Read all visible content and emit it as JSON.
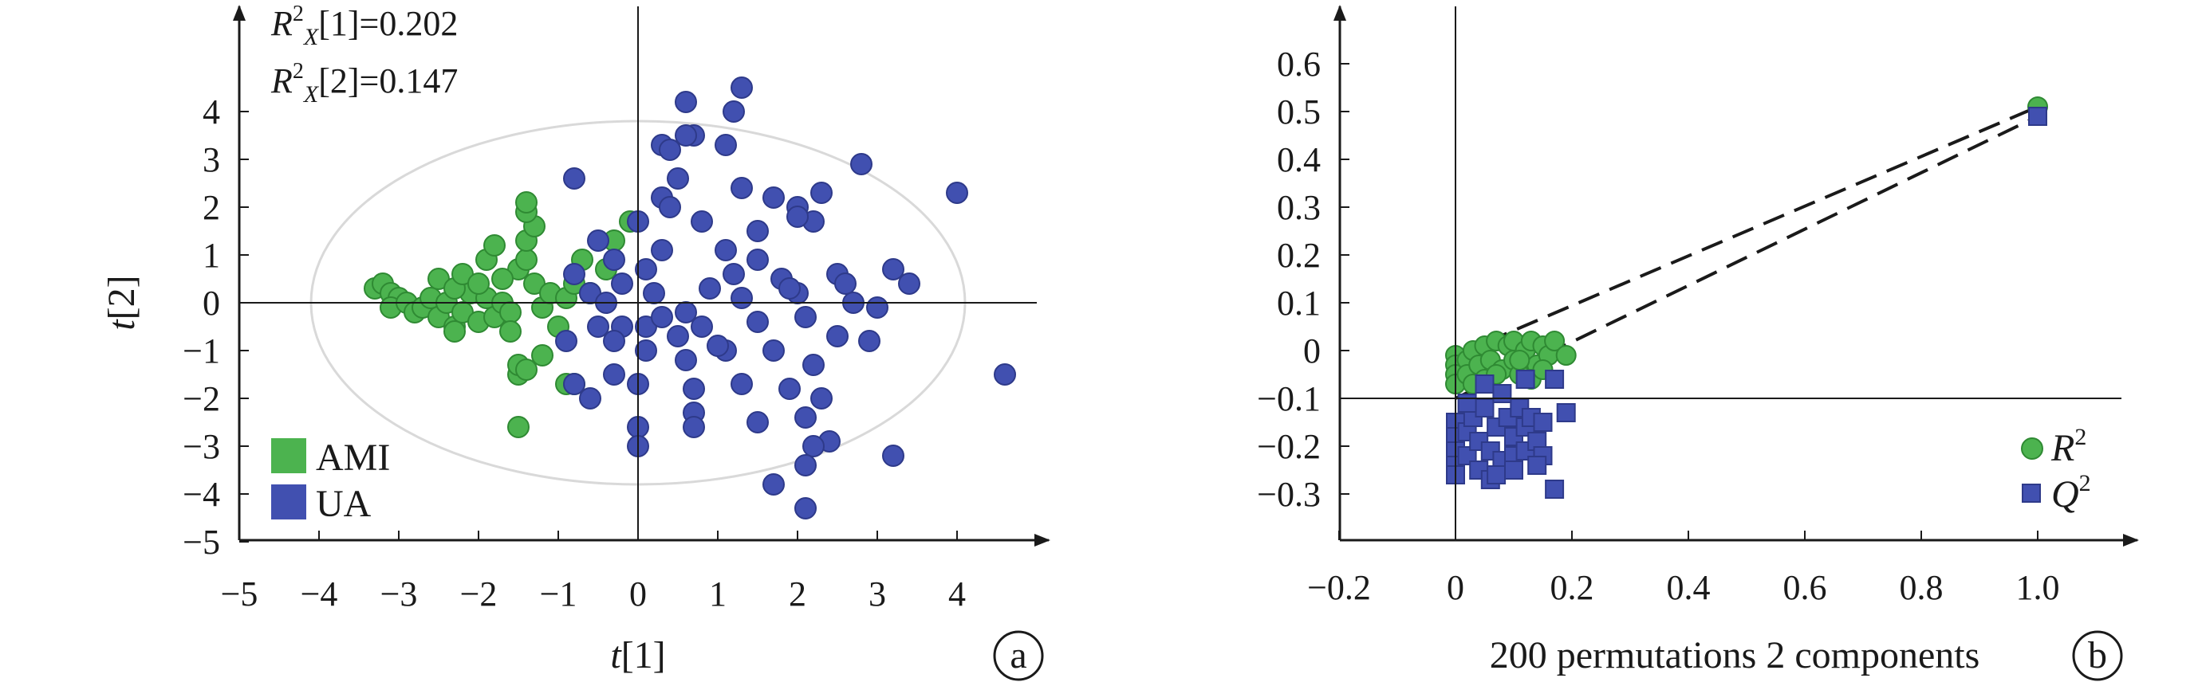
{
  "colors": {
    "ami": "#4CB34F",
    "ua": "#4150B0",
    "outline": "#2E3A8A",
    "outline_green": "#2F8A33",
    "ellipse": "#D9D9D9",
    "axis": "#1a1a1a"
  },
  "chart_data": [
    {
      "type": "scatter",
      "panel_label": "a",
      "xlabel": "t[1]",
      "ylabel": "t[2]",
      "xlim": [
        -5,
        5
      ],
      "ylim": [
        -5,
        5
      ],
      "xticks": [
        "−5",
        "−4",
        "−3",
        "−2",
        "−1",
        "0",
        "1",
        "2",
        "3",
        "4"
      ],
      "yticks": [
        "4",
        "3",
        "2",
        "1",
        "0",
        "−1",
        "−2",
        "−3",
        "−4",
        "−5"
      ],
      "annotations": [
        "R²X[1]=0.202",
        "R²X[2]=0.147"
      ],
      "legend": {
        "placement": "bottom-left",
        "entries": [
          "AMI",
          "UA"
        ]
      },
      "ellipse": {
        "rx": 4.1,
        "ry": 3.8
      },
      "series": [
        {
          "name": "AMI",
          "points": [
            [
              -3.3,
              0.3
            ],
            [
              -3.2,
              0.4
            ],
            [
              -3.1,
              0.2
            ],
            [
              -3.0,
              0.1
            ],
            [
              -3.1,
              -0.1
            ],
            [
              -2.9,
              0.0
            ],
            [
              -2.8,
              -0.2
            ],
            [
              -2.7,
              -0.1
            ],
            [
              -2.6,
              0.1
            ],
            [
              -2.5,
              -0.3
            ],
            [
              -2.4,
              0.0
            ],
            [
              -2.3,
              -0.5
            ],
            [
              -2.3,
              -0.6
            ],
            [
              -2.2,
              -0.2
            ],
            [
              -2.1,
              0.2
            ],
            [
              -2.0,
              -0.4
            ],
            [
              -2.5,
              0.5
            ],
            [
              -2.3,
              0.3
            ],
            [
              -2.2,
              0.6
            ],
            [
              -1.9,
              0.1
            ],
            [
              -1.8,
              -0.3
            ],
            [
              -1.7,
              0.0
            ],
            [
              -1.6,
              -0.2
            ],
            [
              -1.5,
              0.7
            ],
            [
              -1.4,
              0.9
            ],
            [
              -1.4,
              1.3
            ],
            [
              -1.3,
              1.6
            ],
            [
              -1.3,
              0.4
            ],
            [
              -1.2,
              -0.1
            ],
            [
              -1.1,
              0.2
            ],
            [
              -1.0,
              -0.5
            ],
            [
              -0.9,
              0.1
            ],
            [
              -0.8,
              0.4
            ],
            [
              -0.7,
              0.9
            ],
            [
              -1.9,
              0.9
            ],
            [
              -1.8,
              1.2
            ],
            [
              -1.6,
              -0.6
            ],
            [
              -1.5,
              -1.5
            ],
            [
              -1.5,
              -1.3
            ],
            [
              -1.4,
              -1.4
            ],
            [
              -1.2,
              -1.1
            ],
            [
              -0.9,
              -1.7
            ],
            [
              -0.8,
              -1.7
            ],
            [
              -1.5,
              -2.6
            ],
            [
              -0.3,
              1.3
            ],
            [
              -0.1,
              1.7
            ],
            [
              -0.6,
              0.2
            ],
            [
              -0.4,
              0.7
            ],
            [
              -1.4,
              1.9
            ],
            [
              -1.4,
              2.1
            ],
            [
              -2.0,
              0.4
            ],
            [
              -1.7,
              0.5
            ]
          ]
        },
        {
          "name": "UA",
          "points": [
            [
              1.3,
              4.5
            ],
            [
              1.2,
              4.0
            ],
            [
              0.6,
              4.2
            ],
            [
              0.7,
              3.5
            ],
            [
              0.3,
              3.3
            ],
            [
              0.4,
              3.2
            ],
            [
              1.1,
              3.3
            ],
            [
              0.6,
              3.5
            ],
            [
              -0.8,
              2.6
            ],
            [
              0.5,
              2.6
            ],
            [
              0.3,
              2.2
            ],
            [
              1.3,
              2.4
            ],
            [
              1.7,
              2.2
            ],
            [
              2.0,
              2.0
            ],
            [
              2.3,
              2.3
            ],
            [
              2.8,
              2.9
            ],
            [
              4.0,
              2.3
            ],
            [
              0.4,
              2.0
            ],
            [
              0.8,
              1.7
            ],
            [
              1.5,
              1.5
            ],
            [
              2.2,
              1.7
            ],
            [
              2.0,
              1.8
            ],
            [
              0.0,
              1.7
            ],
            [
              -0.5,
              1.3
            ],
            [
              -0.3,
              0.9
            ],
            [
              0.1,
              0.7
            ],
            [
              0.3,
              1.1
            ],
            [
              1.1,
              1.1
            ],
            [
              1.5,
              0.9
            ],
            [
              1.8,
              0.5
            ],
            [
              2.5,
              0.6
            ],
            [
              3.2,
              0.7
            ],
            [
              3.4,
              0.4
            ],
            [
              -0.8,
              0.6
            ],
            [
              -0.6,
              0.2
            ],
            [
              -0.4,
              0.0
            ],
            [
              0.2,
              0.2
            ],
            [
              0.9,
              0.3
            ],
            [
              1.3,
              0.1
            ],
            [
              2.0,
              0.2
            ],
            [
              2.7,
              0.0
            ],
            [
              3.0,
              -0.1
            ],
            [
              -0.5,
              -0.5
            ],
            [
              -0.2,
              -0.5
            ],
            [
              0.1,
              -0.5
            ],
            [
              0.5,
              -0.7
            ],
            [
              0.8,
              -0.5
            ],
            [
              1.5,
              -0.4
            ],
            [
              2.1,
              -0.3
            ],
            [
              2.5,
              -0.7
            ],
            [
              2.9,
              -0.8
            ],
            [
              -0.9,
              -0.8
            ],
            [
              -0.3,
              -0.8
            ],
            [
              0.1,
              -1.0
            ],
            [
              0.6,
              -1.2
            ],
            [
              1.1,
              -1.0
            ],
            [
              1.7,
              -1.0
            ],
            [
              2.2,
              -1.3
            ],
            [
              -0.8,
              -1.7
            ],
            [
              -0.3,
              -1.5
            ],
            [
              0.0,
              -1.7
            ],
            [
              0.7,
              -1.8
            ],
            [
              1.3,
              -1.7
            ],
            [
              1.9,
              -1.8
            ],
            [
              2.3,
              -2.0
            ],
            [
              -0.6,
              -2.0
            ],
            [
              0.0,
              -2.6
            ],
            [
              0.7,
              -2.3
            ],
            [
              1.5,
              -2.5
            ],
            [
              2.1,
              -2.4
            ],
            [
              2.4,
              -2.9
            ],
            [
              0.0,
              -3.0
            ],
            [
              0.7,
              -2.6
            ],
            [
              2.2,
              -3.0
            ],
            [
              2.1,
              -3.4
            ],
            [
              1.7,
              -3.8
            ],
            [
              2.1,
              -4.3
            ],
            [
              3.2,
              -3.2
            ],
            [
              4.6,
              -1.5
            ],
            [
              0.6,
              -0.2
            ],
            [
              1.2,
              0.6
            ],
            [
              -0.2,
              0.4
            ],
            [
              0.3,
              -0.3
            ],
            [
              1.0,
              -0.9
            ],
            [
              1.9,
              0.3
            ],
            [
              2.6,
              0.4
            ]
          ]
        }
      ]
    },
    {
      "type": "scatter",
      "panel_label": "b",
      "xlabel": "200 permutations 2 components",
      "ylabel": "",
      "xlim": [
        -0.25,
        1.2
      ],
      "ylim": [
        -0.4,
        0.7
      ],
      "xticks": [
        "−0.2",
        "0",
        "0.2",
        "0.4",
        "0.6",
        "0.8",
        "1.0"
      ],
      "yticks": [
        "0.6",
        "0.5",
        "0.4",
        "0.3",
        "0.2",
        "0.1",
        "0",
        "−0.1",
        "−0.2",
        "−0.3"
      ],
      "legend": {
        "placement": "bottom-right",
        "entries": [
          "R²",
          "Q²"
        ]
      },
      "regression_lines": [
        {
          "series": "R2",
          "from": [
            0.0,
            -0.01
          ],
          "to": [
            1.0,
            0.51
          ]
        },
        {
          "series": "Q2",
          "from": [
            0.0,
            -0.1
          ],
          "to": [
            1.0,
            0.49
          ]
        }
      ],
      "series": [
        {
          "name": "R2",
          "points": [
            [
              1.0,
              0.51
            ],
            [
              0.0,
              -0.01
            ],
            [
              0.0,
              -0.03
            ],
            [
              0.0,
              -0.05
            ],
            [
              0.0,
              -0.07
            ],
            [
              0.02,
              -0.02
            ],
            [
              0.02,
              -0.05
            ],
            [
              0.03,
              0.0
            ],
            [
              0.04,
              -0.03
            ],
            [
              0.05,
              0.01
            ],
            [
              0.05,
              -0.06
            ],
            [
              0.06,
              -0.02
            ],
            [
              0.07,
              0.02
            ],
            [
              0.08,
              -0.04
            ],
            [
              0.09,
              0.01
            ],
            [
              0.1,
              -0.02
            ],
            [
              0.1,
              0.02
            ],
            [
              0.11,
              -0.05
            ],
            [
              0.12,
              0.0
            ],
            [
              0.13,
              0.02
            ],
            [
              0.14,
              -0.03
            ],
            [
              0.15,
              0.01
            ],
            [
              0.16,
              -0.01
            ],
            [
              0.17,
              0.02
            ],
            [
              0.19,
              -0.01
            ],
            [
              0.03,
              -0.07
            ],
            [
              0.07,
              -0.05
            ],
            [
              0.11,
              -0.02
            ],
            [
              0.13,
              -0.06
            ],
            [
              0.15,
              -0.04
            ]
          ]
        },
        {
          "name": "Q2",
          "points": [
            [
              1.0,
              0.49
            ],
            [
              0.0,
              -0.15
            ],
            [
              0.0,
              -0.18
            ],
            [
              0.0,
              -0.21
            ],
            [
              0.0,
              -0.24
            ],
            [
              0.0,
              -0.26
            ],
            [
              0.02,
              -0.17
            ],
            [
              0.02,
              -0.22
            ],
            [
              0.03,
              -0.14
            ],
            [
              0.04,
              -0.19
            ],
            [
              0.04,
              -0.25
            ],
            [
              0.05,
              -0.12
            ],
            [
              0.06,
              -0.21
            ],
            [
              0.06,
              -0.27
            ],
            [
              0.07,
              -0.16
            ],
            [
              0.08,
              -0.23
            ],
            [
              0.09,
              -0.14
            ],
            [
              0.1,
              -0.18
            ],
            [
              0.1,
              -0.22
            ],
            [
              0.11,
              -0.12
            ],
            [
              0.12,
              -0.16
            ],
            [
              0.12,
              -0.21
            ],
            [
              0.13,
              -0.14
            ],
            [
              0.14,
              -0.19
            ],
            [
              0.15,
              -0.15
            ],
            [
              0.15,
              -0.22
            ],
            [
              0.17,
              -0.06
            ],
            [
              0.17,
              -0.29
            ],
            [
              0.19,
              -0.13
            ],
            [
              0.05,
              -0.07
            ],
            [
              0.12,
              -0.06
            ],
            [
              0.08,
              -0.09
            ],
            [
              0.02,
              -0.11
            ],
            [
              0.07,
              -0.26
            ],
            [
              0.1,
              -0.25
            ],
            [
              0.14,
              -0.24
            ]
          ]
        }
      ]
    }
  ]
}
